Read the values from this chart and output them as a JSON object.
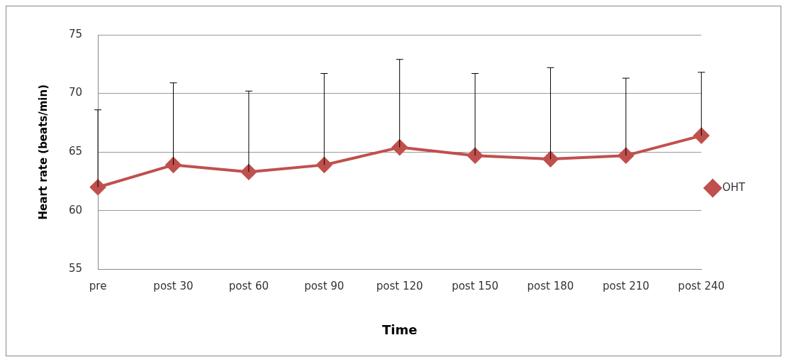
{
  "chart_data": {
    "type": "line",
    "xlabel": "Time",
    "ylabel": "Heart rate (beats/min)",
    "categories": [
      "pre",
      "post 30",
      "post 60",
      "post 90",
      "post 120",
      "post 150",
      "post 180",
      "post 210",
      "post 240"
    ],
    "series": [
      {
        "name": "OHT",
        "color": "#c0504d",
        "values": [
          62.0,
          63.9,
          63.3,
          63.9,
          65.4,
          64.7,
          64.4,
          64.7,
          66.4
        ],
        "errors": [
          [
            62.0,
            68.6
          ],
          [
            63.9,
            70.9
          ],
          [
            63.3,
            70.2
          ],
          [
            63.9,
            71.7
          ],
          [
            65.4,
            72.9
          ],
          [
            64.7,
            71.7
          ],
          [
            64.4,
            72.2
          ],
          [
            64.7,
            71.3
          ],
          [
            66.4,
            71.8
          ]
        ]
      }
    ],
    "ylim": [
      55,
      75
    ],
    "yticks": [
      55,
      60,
      65,
      70,
      75
    ],
    "grid": "y",
    "legend": "right",
    "marker": "diamond",
    "line_style": "solid"
  }
}
